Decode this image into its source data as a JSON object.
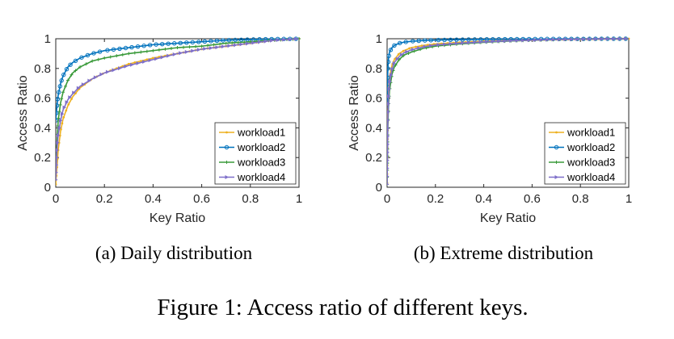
{
  "figure": {
    "caption": "Figure 1: Access ratio of different keys."
  },
  "colors": {
    "workload1": "#EDB120",
    "workload2": "#0072BD",
    "workload3": "#3A9A3A",
    "workload4": "#7E6FC9"
  },
  "chart_data": [
    {
      "type": "line",
      "subcaption": "(a)  Daily distribution",
      "xlabel": "Key Ratio",
      "ylabel": "Access Ratio",
      "xlim": [
        0,
        1
      ],
      "ylim": [
        0,
        1
      ],
      "xticks": [
        "0",
        "0.2",
        "0.4",
        "0.6",
        "0.8",
        "1"
      ],
      "yticks": [
        "0",
        "0.2",
        "0.4",
        "0.6",
        "0.8",
        "1"
      ],
      "legend_position": "bottom-right",
      "grid": false,
      "series": [
        {
          "name": "workload1",
          "marker": "dot",
          "x": [
            0,
            0.01,
            0.02,
            0.03,
            0.05,
            0.07,
            0.1,
            0.15,
            0.2,
            0.3,
            0.4,
            0.5,
            0.6,
            0.7,
            0.8,
            0.9,
            1.0
          ],
          "y": [
            0.02,
            0.25,
            0.38,
            0.46,
            0.55,
            0.61,
            0.67,
            0.73,
            0.77,
            0.83,
            0.87,
            0.9,
            0.93,
            0.95,
            0.97,
            0.99,
            1.0
          ]
        },
        {
          "name": "workload2",
          "marker": "circle",
          "x": [
            0,
            0.005,
            0.01,
            0.02,
            0.03,
            0.05,
            0.07,
            0.1,
            0.15,
            0.2,
            0.3,
            0.4,
            0.5,
            0.6,
            0.7,
            0.8,
            0.9,
            1.0
          ],
          "y": [
            0.45,
            0.55,
            0.62,
            0.7,
            0.75,
            0.81,
            0.84,
            0.87,
            0.9,
            0.92,
            0.94,
            0.96,
            0.97,
            0.98,
            0.99,
            0.995,
            0.998,
            1.0
          ]
        },
        {
          "name": "workload3",
          "marker": "plus",
          "x": [
            0,
            0.005,
            0.01,
            0.02,
            0.03,
            0.05,
            0.07,
            0.1,
            0.15,
            0.2,
            0.3,
            0.4,
            0.5,
            0.6,
            0.7,
            0.8,
            0.9,
            1.0
          ],
          "y": [
            0.1,
            0.3,
            0.45,
            0.57,
            0.64,
            0.72,
            0.77,
            0.81,
            0.85,
            0.87,
            0.9,
            0.92,
            0.94,
            0.95,
            0.97,
            0.98,
            0.99,
            1.0
          ]
        },
        {
          "name": "workload4",
          "marker": "triangle",
          "x": [
            0,
            0.005,
            0.01,
            0.02,
            0.03,
            0.05,
            0.07,
            0.1,
            0.15,
            0.2,
            0.3,
            0.4,
            0.5,
            0.6,
            0.7,
            0.8,
            0.9,
            1.0
          ],
          "y": [
            0.05,
            0.25,
            0.35,
            0.45,
            0.52,
            0.59,
            0.63,
            0.68,
            0.73,
            0.77,
            0.82,
            0.86,
            0.9,
            0.93,
            0.95,
            0.97,
            0.99,
            1.0
          ]
        }
      ]
    },
    {
      "type": "line",
      "subcaption": "(b)  Extreme distribution",
      "xlabel": "Key Ratio",
      "ylabel": "Access Ratio",
      "xlim": [
        0,
        1
      ],
      "ylim": [
        0,
        1
      ],
      "xticks": [
        "0",
        "0.2",
        "0.4",
        "0.6",
        "0.8",
        "1"
      ],
      "yticks": [
        "0",
        "0.2",
        "0.4",
        "0.6",
        "0.8",
        "1"
      ],
      "legend_position": "bottom-right",
      "grid": false,
      "series": [
        {
          "name": "workload1",
          "marker": "dot",
          "x": [
            0,
            0.003,
            0.006,
            0.01,
            0.02,
            0.03,
            0.05,
            0.07,
            0.1,
            0.15,
            0.2,
            0.3,
            0.4,
            0.5,
            0.6,
            0.7,
            0.8,
            0.9,
            1.0
          ],
          "y": [
            0.03,
            0.5,
            0.65,
            0.74,
            0.82,
            0.86,
            0.9,
            0.92,
            0.94,
            0.955,
            0.965,
            0.975,
            0.982,
            0.988,
            0.992,
            0.995,
            0.997,
            0.999,
            1.0
          ]
        },
        {
          "name": "workload2",
          "marker": "circle",
          "x": [
            0,
            0.003,
            0.006,
            0.01,
            0.02,
            0.03,
            0.05,
            0.07,
            0.1,
            0.15,
            0.2,
            0.3,
            0.4,
            0.5,
            0.6,
            0.7,
            0.8,
            0.9,
            1.0
          ],
          "y": [
            0.55,
            0.8,
            0.87,
            0.91,
            0.94,
            0.955,
            0.97,
            0.977,
            0.983,
            0.988,
            0.991,
            0.994,
            0.996,
            0.997,
            0.998,
            0.999,
            0.999,
            1.0,
            1.0
          ]
        },
        {
          "name": "workload3",
          "marker": "plus",
          "x": [
            0,
            0.003,
            0.006,
            0.01,
            0.02,
            0.03,
            0.05,
            0.07,
            0.1,
            0.15,
            0.2,
            0.3,
            0.4,
            0.5,
            0.6,
            0.7,
            0.8,
            0.9,
            1.0
          ],
          "y": [
            0.02,
            0.4,
            0.55,
            0.65,
            0.76,
            0.81,
            0.86,
            0.89,
            0.91,
            0.935,
            0.95,
            0.965,
            0.976,
            0.984,
            0.99,
            0.994,
            0.997,
            0.999,
            1.0
          ]
        },
        {
          "name": "workload4",
          "marker": "triangle",
          "x": [
            0,
            0.003,
            0.006,
            0.01,
            0.02,
            0.03,
            0.05,
            0.07,
            0.1,
            0.15,
            0.2,
            0.3,
            0.4,
            0.5,
            0.6,
            0.7,
            0.8,
            0.9,
            1.0
          ],
          "y": [
            0.02,
            0.45,
            0.6,
            0.7,
            0.79,
            0.84,
            0.88,
            0.905,
            0.925,
            0.945,
            0.958,
            0.97,
            0.979,
            0.986,
            0.991,
            0.995,
            0.997,
            0.999,
            1.0
          ]
        }
      ]
    }
  ]
}
